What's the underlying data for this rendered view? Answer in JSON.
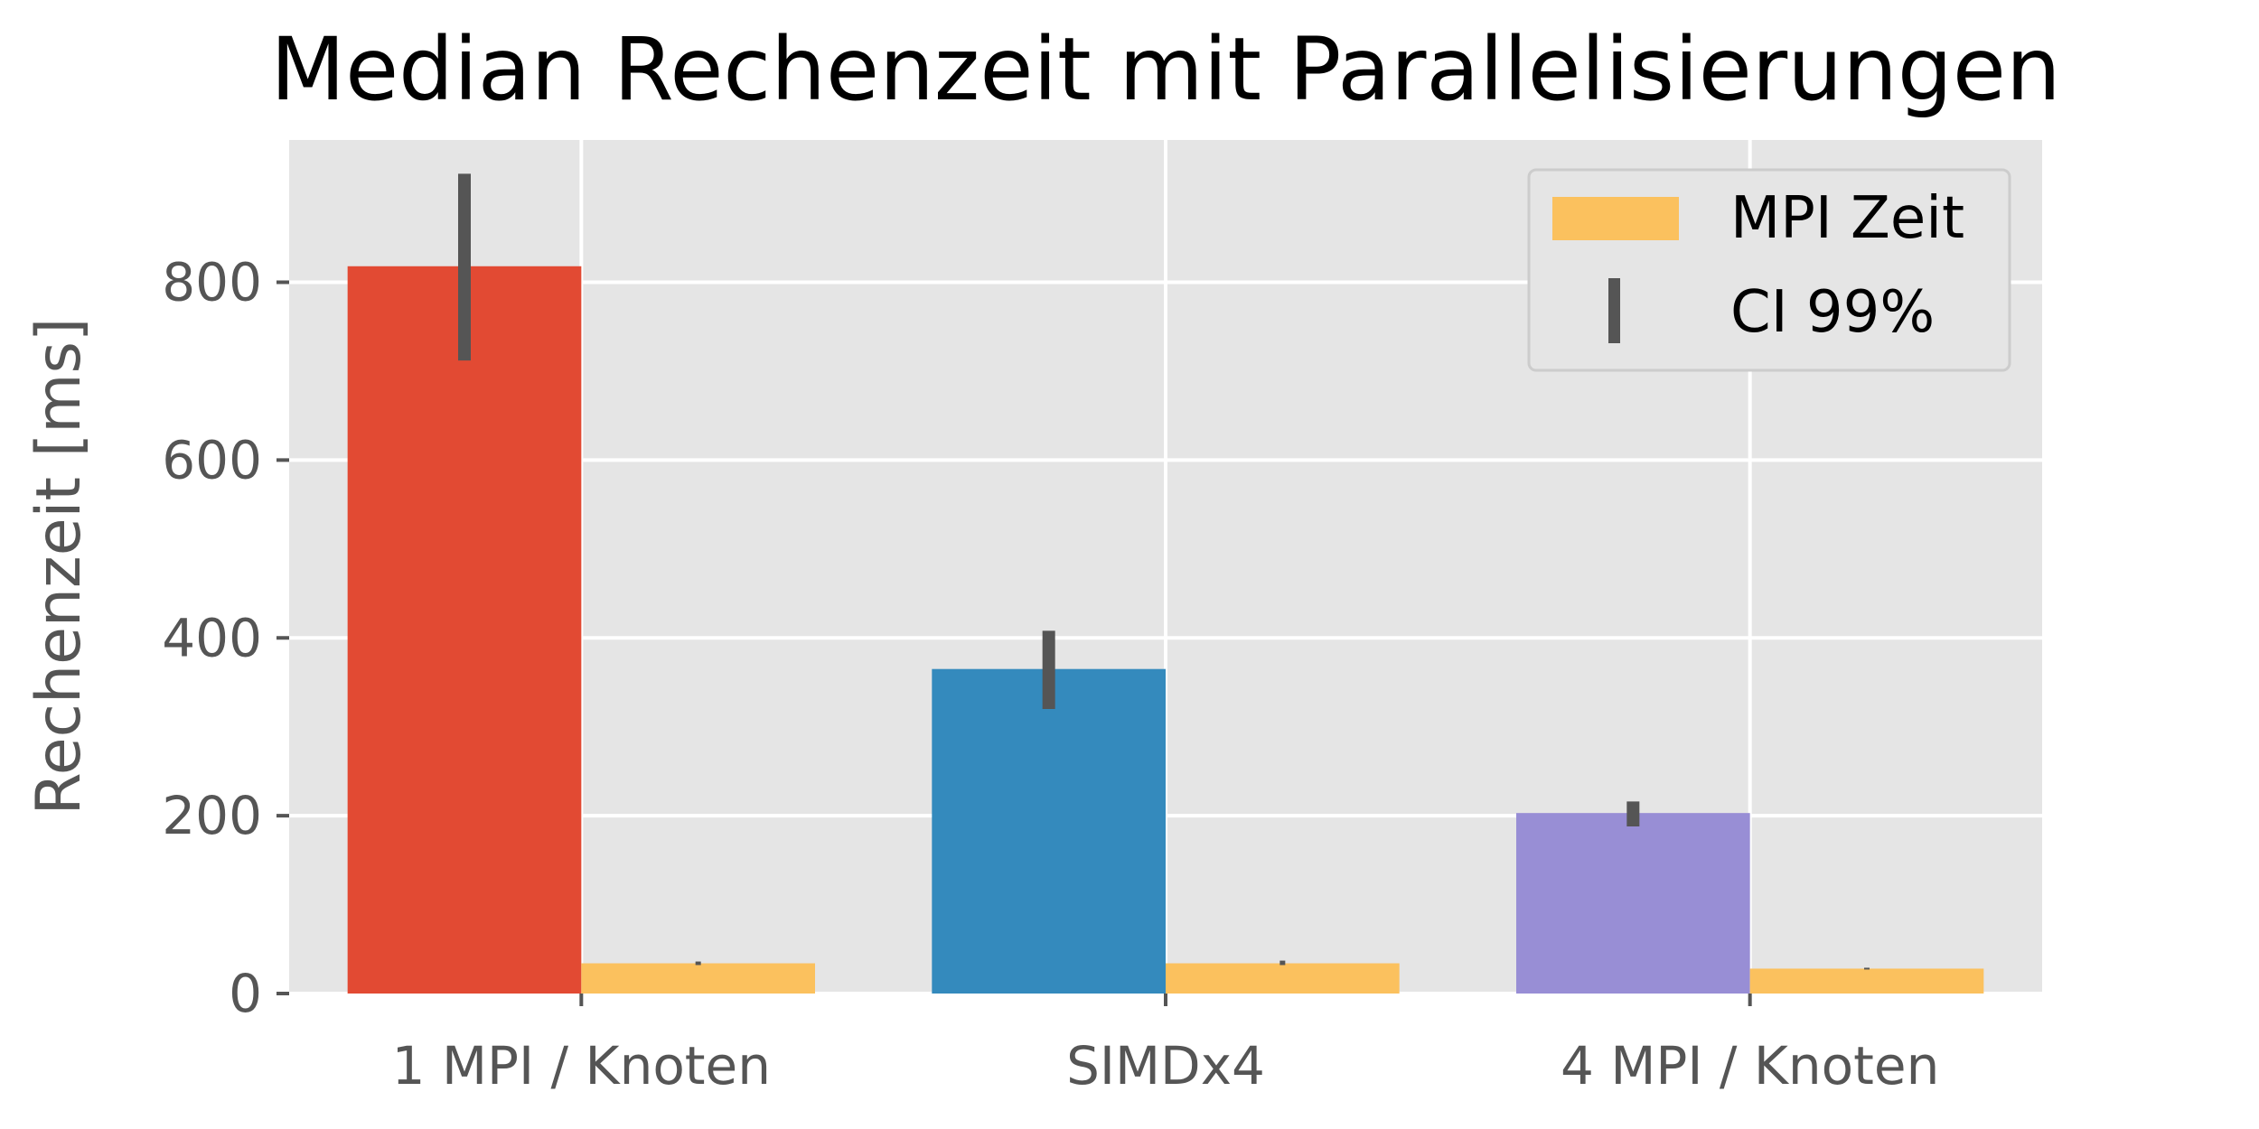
{
  "chart_data": {
    "type": "bar",
    "title": "Median Rechenzeit mit Parallelisierungen",
    "ylabel": "Rechenzeit [ms]",
    "xlabel": "",
    "ylim": [
      0,
      960
    ],
    "yticks": [
      0,
      200,
      400,
      600,
      800
    ],
    "grid": true,
    "legend_position": "top-right",
    "categories": [
      "1 MPI / Knoten",
      "SIMDx4",
      "4 MPI / Knoten"
    ],
    "series": [
      {
        "values": [
          818,
          365,
          203
        ],
        "colors": [
          "#E24A33",
          "#348ABD",
          "#988ED5"
        ],
        "ci_low": [
          712,
          320,
          188
        ],
        "ci_high": [
          922,
          408,
          216
        ]
      },
      {
        "name": "MPI Zeit",
        "values": [
          34,
          34,
          28
        ],
        "color": "#FBC15E",
        "ci_low": [
          32,
          32,
          27
        ],
        "ci_high": [
          36,
          37,
          29
        ]
      }
    ],
    "legend": [
      {
        "label": "MPI Zeit",
        "symbol": "patch",
        "color": "#FBC15E"
      },
      {
        "label": "CI 99%",
        "symbol": "errorbar",
        "color": "#555555"
      }
    ],
    "style": {
      "plot_background": "#E5E5E5",
      "grid_color": "#FFFFFF",
      "errorbar_color": "#555555",
      "tick_color": "#555555"
    }
  }
}
